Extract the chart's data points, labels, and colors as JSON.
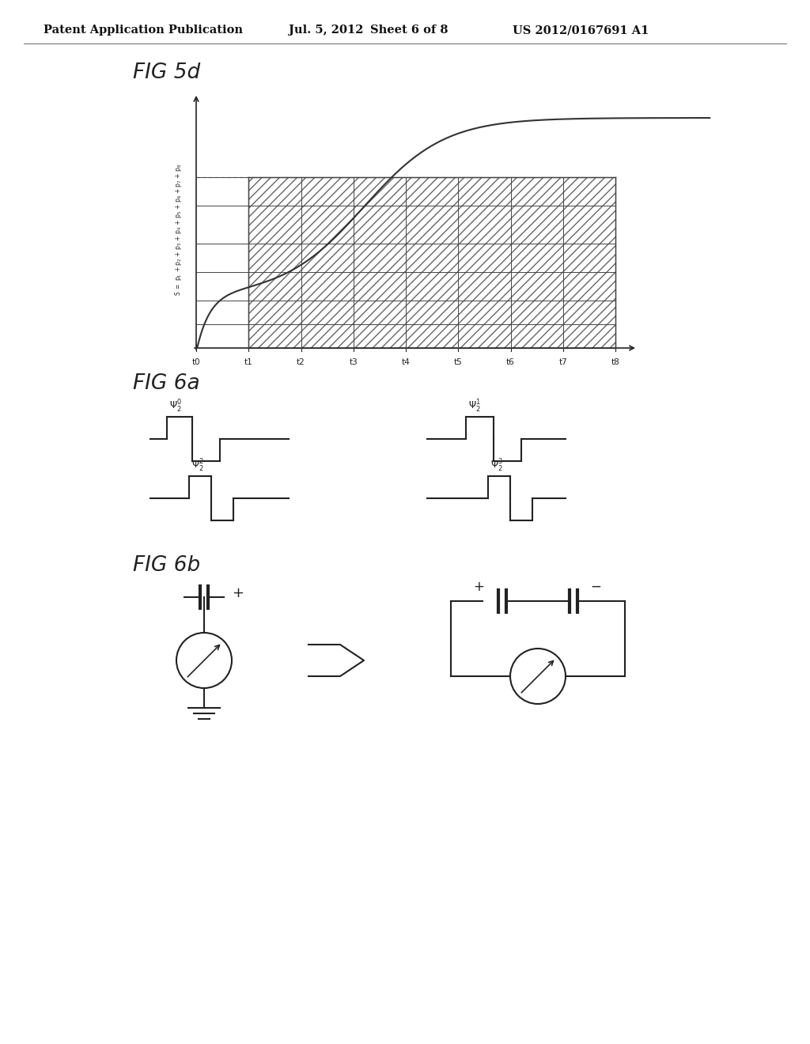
{
  "bg_color": "#ffffff",
  "header_text": "Patent Application Publication",
  "header_date": "Jul. 5, 2012",
  "header_sheet": "Sheet 6 of 8",
  "header_patent": "US 2012/0167691 A1",
  "fig5d_label": "FIG 5d",
  "fig6a_label": "FIG 6a",
  "fig6b_label": "FIG 6b",
  "y_axis_label": "S = p1 + p2 + p3 + p4 + p5 + p6 + p7 + p8",
  "x_ticks": [
    "t0",
    "t1",
    "t2",
    "t3",
    "t4",
    "t5",
    "t6",
    "t7",
    "t8"
  ],
  "curve_color": "#333333",
  "hatch_color": "#666666",
  "line_color": "#222222",
  "text_color": "#111111"
}
